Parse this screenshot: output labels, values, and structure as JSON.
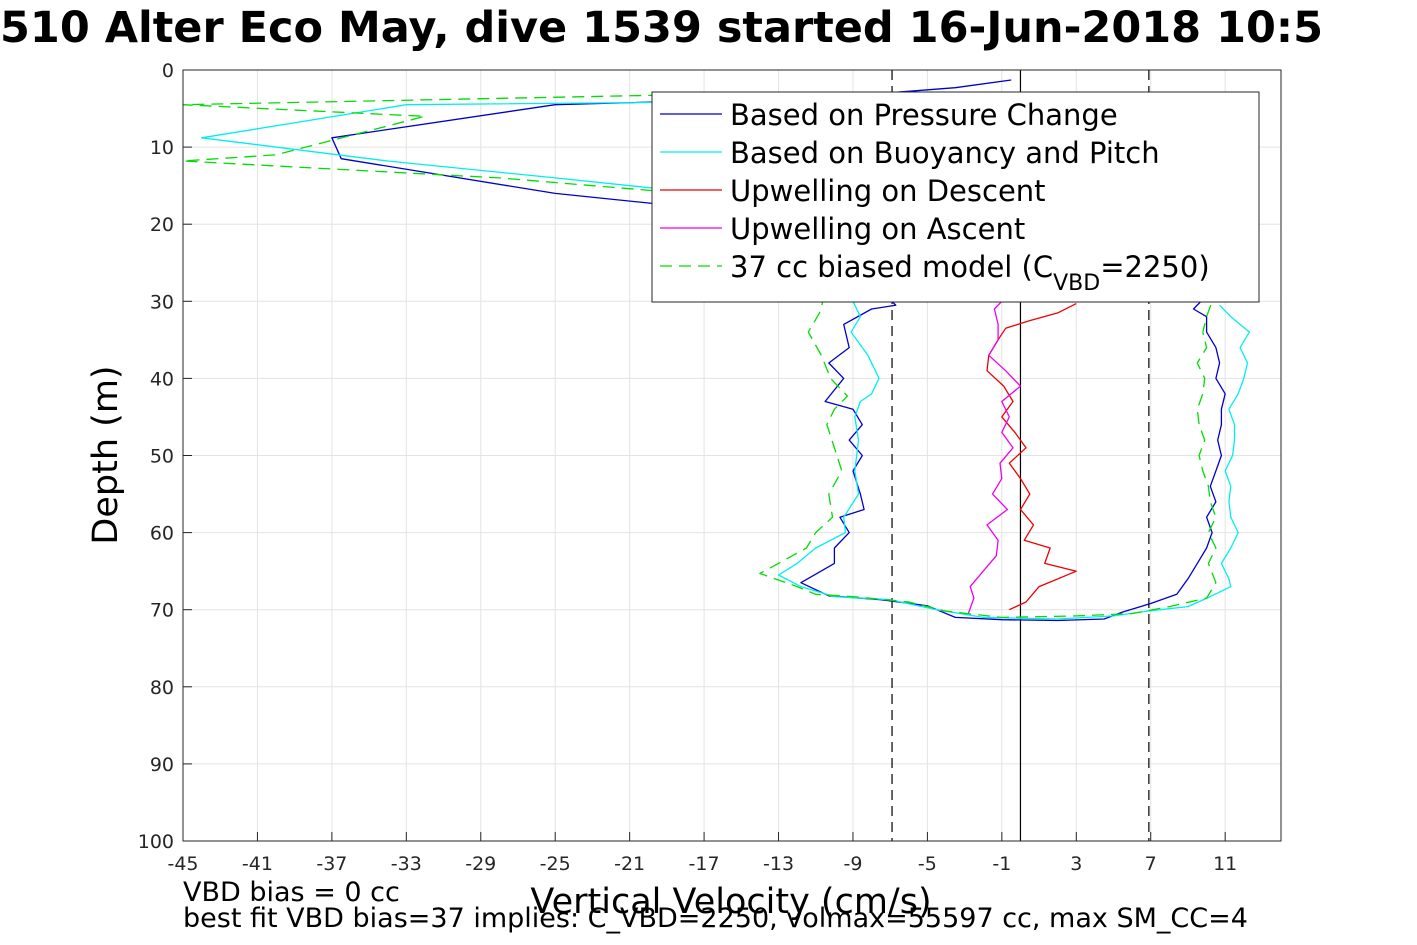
{
  "title": "510 Alter Eco May, dive 1539 started 16-Jun-2018 10:5",
  "notes": {
    "bias": "VBD bias = 0 cc",
    "best_fit": "best fit VBD bias=37 implies: C_VBD=2250, volmax=55597 cc, max SM_CC=4"
  },
  "colors": {
    "pressure": "#0000cc",
    "buoyancy": "#00eeee",
    "descent": "#ee0000",
    "ascent": "#ee00ee",
    "model": "#00dd00",
    "grid": "#e3e3e3",
    "axis": "#262626"
  },
  "chart_data": {
    "type": "line",
    "xlabel": "Vertical Velocity (cm/s)",
    "ylabel": "Depth (m)",
    "xlim": [
      -45,
      14
    ],
    "ylim": [
      0,
      100
    ],
    "y_reversed": true,
    "x_ticks": [
      -45,
      -41,
      -37,
      -33,
      -29,
      -25,
      -21,
      -17,
      -13,
      -9,
      -5,
      -1,
      3,
      7,
      11
    ],
    "y_ticks": [
      0,
      10,
      20,
      30,
      40,
      50,
      60,
      70,
      80,
      90,
      100
    ],
    "grid": true,
    "legend_position": "top-right",
    "reference_lines": [
      {
        "x": 0,
        "style": "solid"
      },
      {
        "x": -6.9,
        "style": "dashed"
      },
      {
        "x": 6.9,
        "style": "dashed"
      }
    ],
    "series": [
      {
        "name": "Based on Pressure Change",
        "key": "pressure",
        "style": "solid",
        "points": [
          [
            -0.5,
            1.3
          ],
          [
            -3.5,
            2.3
          ],
          [
            -10,
            3.5
          ],
          [
            -25,
            4.5
          ],
          [
            -37,
            8.8
          ],
          [
            -36.5,
            11.5
          ],
          [
            -25,
            16
          ],
          [
            -19,
            17.5
          ],
          [
            -15,
            20
          ],
          [
            -12,
            25
          ],
          [
            -7.2,
            29.3
          ],
          [
            -6.7,
            30.5
          ],
          [
            -8,
            31
          ],
          [
            -9.5,
            33
          ],
          [
            -9.2,
            36
          ],
          [
            -10.3,
            38
          ],
          [
            -9.5,
            40
          ],
          [
            -10.5,
            43
          ],
          [
            -9,
            44
          ],
          [
            -8.5,
            46
          ],
          [
            -9.2,
            48
          ],
          [
            -8.5,
            50
          ],
          [
            -9,
            52
          ],
          [
            -8.6,
            55
          ],
          [
            -8.4,
            57
          ],
          [
            -9.7,
            58
          ],
          [
            -9.2,
            60
          ],
          [
            -10,
            62
          ],
          [
            -10,
            64
          ],
          [
            -11.8,
            66.5
          ],
          [
            -10.3,
            68.2
          ],
          [
            -7.5,
            68.7
          ],
          [
            -5,
            69.5
          ],
          [
            -3.5,
            71
          ],
          [
            -1,
            71.3
          ],
          [
            2,
            71.4
          ],
          [
            4.5,
            71.2
          ],
          [
            5.5,
            70.3
          ],
          [
            7,
            69.2
          ],
          [
            8.4,
            68
          ],
          [
            9,
            66
          ],
          [
            9.5,
            64
          ],
          [
            10,
            62
          ],
          [
            10.3,
            60
          ],
          [
            10,
            58
          ],
          [
            10.5,
            56
          ],
          [
            10.2,
            54
          ],
          [
            10.5,
            52
          ],
          [
            10.8,
            50
          ],
          [
            10.6,
            48
          ],
          [
            10.8,
            46
          ],
          [
            10.8,
            44
          ],
          [
            11,
            42
          ],
          [
            10.5,
            40
          ],
          [
            10.7,
            38
          ],
          [
            10.5,
            36
          ],
          [
            10,
            34
          ],
          [
            10,
            32
          ],
          [
            9.3,
            31
          ],
          [
            9.7,
            30
          ]
        ]
      },
      {
        "name": "Based on Buoyancy and Pitch",
        "key": "buoyancy",
        "style": "solid",
        "points": [
          [
            -2.5,
            3.5
          ],
          [
            -10,
            4
          ],
          [
            -33,
            4.5
          ],
          [
            -44,
            8.8
          ],
          [
            -34,
            11.8
          ],
          [
            -25,
            14
          ],
          [
            -17,
            16
          ],
          [
            -14,
            18
          ],
          [
            -12,
            22
          ],
          [
            -10,
            27
          ],
          [
            -9,
            30
          ],
          [
            -8.6,
            32
          ],
          [
            -9.1,
            34
          ],
          [
            -8.2,
            37
          ],
          [
            -7.6,
            40
          ],
          [
            -8,
            42
          ],
          [
            -8.6,
            43
          ],
          [
            -8.9,
            45
          ],
          [
            -8.7,
            48
          ],
          [
            -8.9,
            52
          ],
          [
            -8.7,
            55
          ],
          [
            -9.5,
            58
          ],
          [
            -9.4,
            60
          ],
          [
            -11,
            62
          ],
          [
            -12,
            64
          ],
          [
            -13,
            65.5
          ],
          [
            -11.8,
            67
          ],
          [
            -10,
            68.3
          ],
          [
            -7,
            68.7
          ],
          [
            -4.5,
            70
          ],
          [
            -2,
            71
          ],
          [
            2,
            71.2
          ],
          [
            5,
            70.8
          ],
          [
            6.8,
            70.2
          ],
          [
            9,
            69.6
          ],
          [
            10.2,
            68.3
          ],
          [
            11.3,
            67
          ],
          [
            11.2,
            66
          ],
          [
            10.8,
            64
          ],
          [
            11.3,
            62
          ],
          [
            11.7,
            60
          ],
          [
            11.3,
            58
          ],
          [
            11.2,
            56
          ],
          [
            11.3,
            54
          ],
          [
            11,
            52
          ],
          [
            11.4,
            50
          ],
          [
            11.5,
            48
          ],
          [
            11.5,
            46
          ],
          [
            11.2,
            44
          ],
          [
            11.7,
            42
          ],
          [
            12,
            40
          ],
          [
            12.2,
            38
          ],
          [
            11.8,
            36
          ],
          [
            12.3,
            34
          ],
          [
            11.3,
            32
          ],
          [
            10.7,
            30.5
          ]
        ]
      },
      {
        "name": "Upwelling on Descent",
        "key": "descent",
        "style": "solid",
        "points": [
          [
            3,
            30.3
          ],
          [
            2,
            31.5
          ],
          [
            0.5,
            32.5
          ],
          [
            -0.8,
            33.5
          ],
          [
            -1.2,
            35
          ],
          [
            -1.7,
            37
          ],
          [
            -1.8,
            39
          ],
          [
            -0.9,
            41
          ],
          [
            -0.4,
            43
          ],
          [
            -1,
            45
          ],
          [
            -0.3,
            47
          ],
          [
            0.3,
            49
          ],
          [
            -0.6,
            51
          ],
          [
            0,
            53
          ],
          [
            0.5,
            55
          ],
          [
            0,
            57
          ],
          [
            0.7,
            59
          ],
          [
            0.2,
            61
          ],
          [
            1.6,
            62
          ],
          [
            1.3,
            64
          ],
          [
            3,
            65
          ],
          [
            1,
            67
          ],
          [
            0.3,
            69
          ],
          [
            -0.6,
            70
          ]
        ]
      },
      {
        "name": "Upwelling on Ascent",
        "key": "ascent",
        "style": "solid",
        "points": [
          [
            -2.8,
            70.5
          ],
          [
            -2.5,
            68.5
          ],
          [
            -2.7,
            67
          ],
          [
            -2,
            65
          ],
          [
            -1.3,
            63
          ],
          [
            -1.2,
            61
          ],
          [
            -1.8,
            59
          ],
          [
            -0.7,
            57
          ],
          [
            -1.5,
            55
          ],
          [
            -1,
            53
          ],
          [
            -1.1,
            51
          ],
          [
            -0.4,
            49
          ],
          [
            -1,
            47
          ],
          [
            -0.6,
            45
          ],
          [
            -1,
            43
          ],
          [
            0,
            41
          ],
          [
            -0.8,
            39
          ],
          [
            -1.7,
            37
          ],
          [
            -1.2,
            35
          ],
          [
            -1.2,
            33
          ],
          [
            -1.4,
            31
          ],
          [
            -1,
            30
          ]
        ]
      },
      {
        "name": "37 cc biased model (C_VBD=2250)",
        "key": "model",
        "style": "dashed",
        "points": [
          [
            -2,
            3
          ],
          [
            -20,
            3.3
          ],
          [
            -45,
            4.5
          ],
          [
            -32,
            6
          ],
          [
            -40,
            11
          ],
          [
            -45,
            11.8
          ],
          [
            -28,
            14
          ],
          [
            -18,
            16
          ],
          [
            -14,
            18
          ],
          [
            -12,
            24
          ],
          [
            -10.5,
            29
          ],
          [
            -10.8,
            31.5
          ],
          [
            -11.4,
            34
          ],
          [
            -10.7,
            37
          ],
          [
            -10.2,
            40
          ],
          [
            -9.3,
            42.3
          ],
          [
            -10,
            44
          ],
          [
            -10.4,
            46
          ],
          [
            -10,
            49
          ],
          [
            -9.6,
            52
          ],
          [
            -10.3,
            55
          ],
          [
            -10.1,
            58
          ],
          [
            -11,
            60
          ],
          [
            -11.5,
            62
          ],
          [
            -13,
            64
          ],
          [
            -14,
            65.3
          ],
          [
            -12,
            67
          ],
          [
            -11,
            68
          ],
          [
            -9,
            68.3
          ],
          [
            -6,
            69
          ],
          [
            -4,
            70.2
          ],
          [
            -1,
            71
          ],
          [
            3,
            70.8
          ],
          [
            6,
            70.5
          ],
          [
            8,
            69.6
          ],
          [
            10,
            68.5
          ],
          [
            10.5,
            66.5
          ],
          [
            10.1,
            64
          ],
          [
            10.5,
            62
          ],
          [
            10.1,
            60
          ],
          [
            10.5,
            58
          ],
          [
            10.2,
            56
          ],
          [
            10.1,
            54
          ],
          [
            9.8,
            52
          ],
          [
            9.6,
            50
          ],
          [
            9.9,
            48
          ],
          [
            9.6,
            46
          ],
          [
            9.5,
            44
          ],
          [
            9.8,
            42
          ],
          [
            9.9,
            40
          ],
          [
            9.5,
            38
          ],
          [
            10,
            36
          ],
          [
            9.8,
            34
          ],
          [
            10,
            32
          ],
          [
            10.3,
            30
          ]
        ]
      }
    ]
  }
}
